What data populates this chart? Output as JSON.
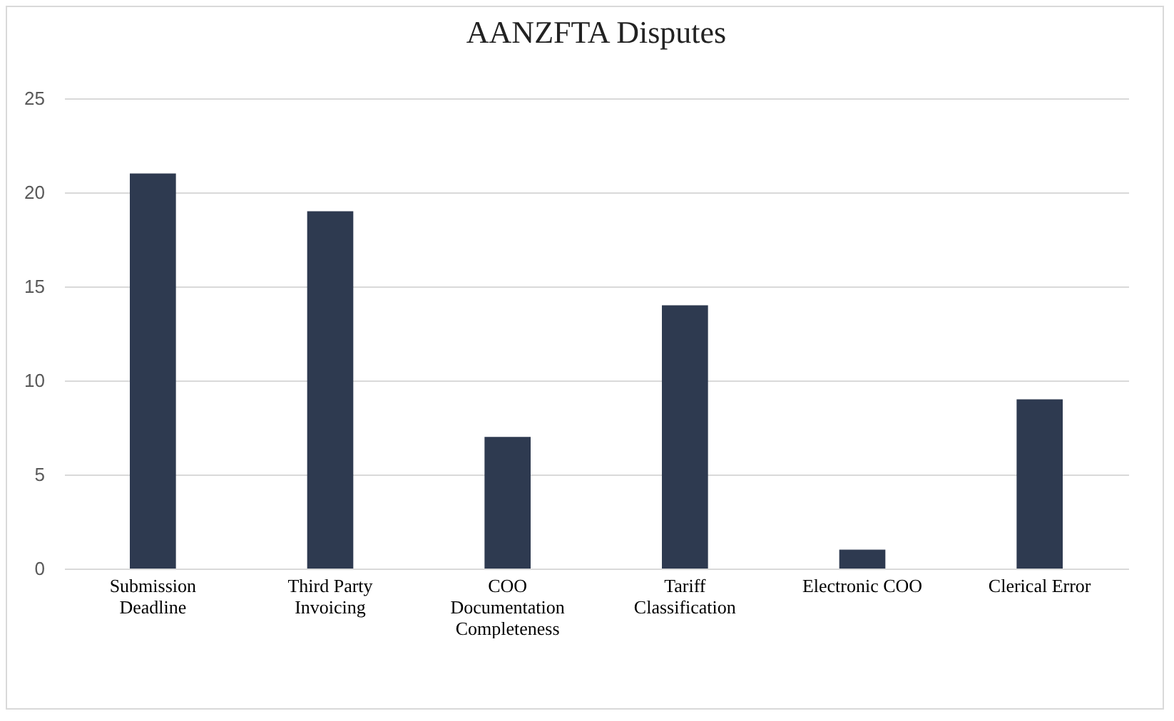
{
  "chart_data": {
    "type": "bar",
    "title": "AANZFTA Disputes",
    "categories": [
      "Submission Deadline",
      "Third Party Invoicing",
      "COO Documentation Completeness",
      "Tariff Classification",
      "Electronic COO",
      "Clerical Error"
    ],
    "values": [
      21,
      19,
      7,
      14,
      1,
      9
    ],
    "color": "#2e3a50",
    "ylim": [
      0,
      25
    ],
    "yticks": [
      0,
      5,
      10,
      15,
      20,
      25
    ],
    "grid": "y"
  }
}
